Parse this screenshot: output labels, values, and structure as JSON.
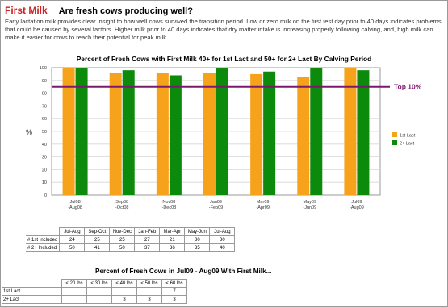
{
  "header": {
    "section_title": "First Milk",
    "question": "Are fresh cows producing well?",
    "intro": "Early lactation milk provides clear insight to how well cows survived the transition period.  Low or zero milk on the first test day prior to 40 days indicates problems that could be caused by several factors.  Higher milk prior to 40 days indicates that dry matter intake is increasing properly following calving, and, high milk can make it easier for cows to reach their potential for peak milk."
  },
  "chart_data": {
    "type": "bar",
    "title": "Percent of Fresh Cows with First Milk 40+ for 1st Lact and 50+ for 2+ Lact By Calving Period",
    "ylabel": "%",
    "xlabel": "",
    "ylim": [
      0,
      100
    ],
    "yticks": [
      0,
      10,
      20,
      30,
      40,
      50,
      60,
      70,
      80,
      90,
      100
    ],
    "grid": true,
    "legend_position": "right",
    "categories": [
      "Jul08\n-Aug08",
      "Sep08\n-Oct08",
      "Nov08\n-Dec08",
      "Jan09\n-Feb09",
      "Mar09\n-Apr09",
      "May09\n-Jun09",
      "Jul09\n-Aug09"
    ],
    "series": [
      {
        "name": "1st Lact",
        "color": "#f7a21b",
        "values": [
          100,
          96,
          96,
          96,
          95,
          93,
          100
        ]
      },
      {
        "name": "2+ Lact",
        "color": "#0b8a0b",
        "values": [
          100,
          98,
          94,
          100,
          97,
          100,
          98
        ]
      }
    ],
    "reference_line": {
      "label": "Top 10%",
      "value": 85,
      "color": "#7a1a6e"
    }
  },
  "table1": {
    "headers": [
      "Jul-Aug",
      "Sep-Oct",
      "Nov-Dec",
      "Jan-Feb",
      "Mar-Apr",
      "May-Jun",
      "Jul-Aug"
    ],
    "rows": [
      {
        "label": "# 1st Included",
        "values": [
          "24",
          "25",
          "25",
          "27",
          "21",
          "30",
          "30"
        ]
      },
      {
        "label": "# 2+ Included",
        "values": [
          "50",
          "41",
          "50",
          "37",
          "36",
          "35",
          "40"
        ]
      }
    ]
  },
  "table2": {
    "title": "Percent of Fresh Cows in Jul09 - Aug09 With First Milk...",
    "headers": [
      "< 20 lbs",
      "< 30 lbs",
      "< 40 lbs",
      "< 50 lbs",
      "< 60 lbs"
    ],
    "rows": [
      {
        "label": "1st Lact",
        "values": [
          "",
          "",
          "",
          "",
          "7"
        ]
      },
      {
        "label": "2+ Lact",
        "values": [
          "",
          "",
          "3",
          "3",
          "3"
        ]
      }
    ]
  }
}
